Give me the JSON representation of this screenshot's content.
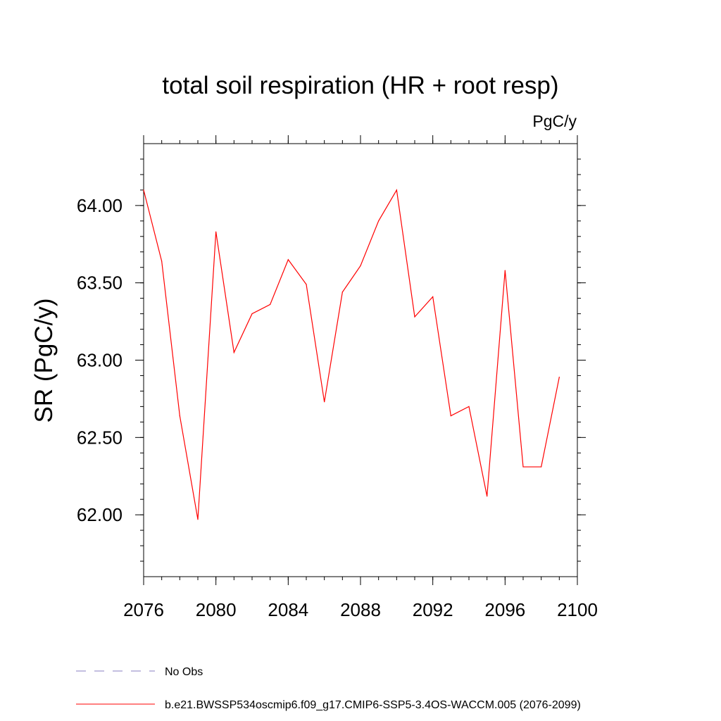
{
  "chart_data": {
    "type": "line",
    "title": "total soil respiration (HR + root resp)",
    "units": "PgC/y",
    "xlabel": "",
    "ylabel": "SR  (PgC/y)",
    "xlim": [
      2076,
      2100
    ],
    "ylim": [
      61.6,
      64.4
    ],
    "x_ticks": [
      2076,
      2080,
      2084,
      2088,
      2092,
      2096,
      2100
    ],
    "x_tick_labels": [
      "2076",
      "2080",
      "2084",
      "2088",
      "2092",
      "2096",
      "2100"
    ],
    "y_ticks": [
      62.0,
      62.5,
      63.0,
      63.5,
      64.0
    ],
    "y_tick_labels": [
      "62.00",
      "62.50",
      "63.00",
      "63.50",
      "64.00"
    ],
    "grid": false,
    "legend_position": "bottom",
    "series": [
      {
        "name": "b.e21.BWSSP534oscmip6.f09_g17.CMIP6-SSP5-3.4OS-WACCM.005 (2076-2099)",
        "color": "#ff0000",
        "style": "solid",
        "x": [
          2076,
          2077,
          2078,
          2079,
          2080,
          2081,
          2082,
          2083,
          2084,
          2085,
          2086,
          2087,
          2088,
          2089,
          2090,
          2091,
          2092,
          2093,
          2094,
          2095,
          2096,
          2097,
          2098,
          2099
        ],
        "values": [
          64.1,
          63.64,
          62.64,
          61.97,
          63.83,
          63.05,
          63.3,
          63.36,
          63.65,
          63.49,
          62.73,
          63.44,
          63.61,
          63.9,
          64.1,
          63.28,
          63.41,
          62.64,
          62.7,
          62.12,
          63.58,
          62.31,
          62.31,
          62.89
        ]
      }
    ],
    "legend": [
      {
        "label": "No Obs",
        "color": "#8a7fc0",
        "style": "dashed"
      },
      {
        "label": "b.e21.BWSSP534oscmip6.f09_g17.CMIP6-SSP5-3.4OS-WACCM.005 (2076-2099)",
        "color": "#ff0000",
        "style": "solid"
      }
    ]
  }
}
